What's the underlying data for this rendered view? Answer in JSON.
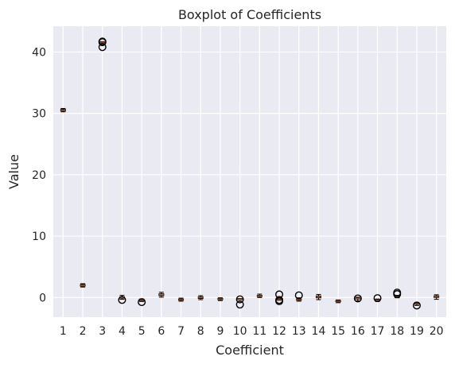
{
  "chart_data": {
    "type": "box",
    "title": "Boxplot of Coefficients",
    "xlabel": "Coefficient",
    "ylabel": "Value",
    "categories": [
      "1",
      "2",
      "3",
      "4",
      "5",
      "6",
      "7",
      "8",
      "9",
      "10",
      "11",
      "12",
      "13",
      "14",
      "15",
      "16",
      "17",
      "18",
      "19",
      "20"
    ],
    "yticks": [
      0,
      10,
      20,
      30,
      40
    ],
    "ylim": [
      -3.2,
      44.2
    ],
    "grid": true,
    "colors": {
      "background": "#eaeaf2",
      "grid": "#ffffff",
      "box": "#000000",
      "median": "#c85a1e",
      "flier": "#000000"
    },
    "boxes": [
      {
        "q1": 30.4,
        "median": 30.5,
        "q3": 30.65,
        "whislo": 30.25,
        "whishi": 30.8,
        "fliers": []
      },
      {
        "q1": 1.85,
        "median": 1.95,
        "q3": 2.1,
        "whislo": 1.7,
        "whishi": 2.25,
        "fliers": []
      },
      {
        "q1": 41.55,
        "median": 41.6,
        "q3": 41.65,
        "whislo": 41.5,
        "whishi": 41.7,
        "fliers": [
          40.8,
          41.6,
          41.7
        ]
      },
      {
        "q1": -0.1,
        "median": 0.0,
        "q3": 0.1,
        "whislo": -0.3,
        "whishi": 0.35,
        "fliers": [
          -0.4
        ]
      },
      {
        "q1": -0.55,
        "median": -0.45,
        "q3": -0.35,
        "whislo": -0.65,
        "whishi": -0.25,
        "fliers": [
          -0.75
        ]
      },
      {
        "q1": 0.3,
        "median": 0.45,
        "q3": 0.6,
        "whislo": 0.05,
        "whishi": 0.85,
        "fliers": []
      },
      {
        "q1": -0.45,
        "median": -0.35,
        "q3": -0.25,
        "whislo": -0.6,
        "whishi": -0.1,
        "fliers": []
      },
      {
        "q1": -0.15,
        "median": 0.0,
        "q3": 0.1,
        "whislo": -0.35,
        "whishi": 0.3,
        "fliers": []
      },
      {
        "q1": -0.35,
        "median": -0.25,
        "q3": -0.15,
        "whislo": -0.5,
        "whishi": -0.05,
        "fliers": []
      },
      {
        "q1": -0.3,
        "median": -0.25,
        "q3": -0.2,
        "whislo": -0.35,
        "whishi": -0.15,
        "fliers": [
          -0.3,
          -1.15
        ]
      },
      {
        "q1": 0.15,
        "median": 0.25,
        "q3": 0.35,
        "whislo": 0.0,
        "whishi": 0.55,
        "fliers": []
      },
      {
        "q1": -0.4,
        "median": -0.35,
        "q3": -0.3,
        "whislo": -0.45,
        "whishi": -0.25,
        "fliers": [
          0.5,
          -0.4,
          -0.6
        ]
      },
      {
        "q1": -0.45,
        "median": -0.35,
        "q3": -0.25,
        "whislo": -0.6,
        "whishi": -0.05,
        "fliers": [
          0.35
        ]
      },
      {
        "q1": -0.05,
        "median": 0.1,
        "q3": 0.25,
        "whislo": -0.35,
        "whishi": 0.5,
        "fliers": []
      },
      {
        "q1": -0.7,
        "median": -0.6,
        "q3": -0.5,
        "whislo": -0.85,
        "whishi": -0.4,
        "fliers": []
      },
      {
        "q1": -0.25,
        "median": -0.15,
        "q3": -0.1,
        "whislo": -0.55,
        "whishi": 0.05,
        "fliers": [
          -0.15
        ]
      },
      {
        "q1": -0.55,
        "median": -0.45,
        "q3": -0.35,
        "whislo": -0.65,
        "whishi": -0.25,
        "fliers": [
          -0.1
        ]
      },
      {
        "q1": 0.05,
        "median": 0.15,
        "q3": 0.25,
        "whislo": -0.05,
        "whishi": 0.35,
        "fliers": [
          0.55,
          0.8
        ]
      },
      {
        "q1": -1.1,
        "median": -1.0,
        "q3": -0.9,
        "whislo": -1.3,
        "whishi": -0.8,
        "fliers": [
          -1.3
        ]
      },
      {
        "q1": 0.0,
        "median": 0.1,
        "q3": 0.25,
        "whislo": -0.3,
        "whishi": 0.45,
        "fliers": []
      }
    ]
  }
}
